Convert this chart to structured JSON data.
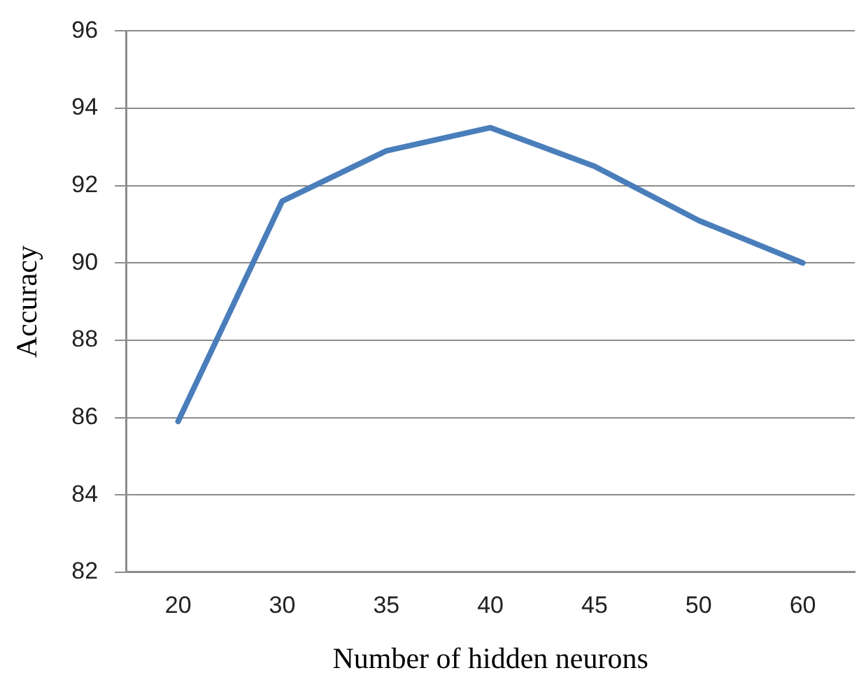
{
  "chart_data": {
    "type": "line",
    "xlabel": "Number of hidden neurons",
    "ylabel": "Accuracy",
    "categories": [
      "20",
      "30",
      "35",
      "40",
      "45",
      "50",
      "60"
    ],
    "series": [
      {
        "color": "#4a7ebb",
        "values": [
          85.9,
          91.6,
          92.9,
          93.5,
          92.5,
          91.1,
          90.0
        ]
      }
    ],
    "ylim": [
      82,
      96
    ],
    "yticks": [
      82,
      84,
      86,
      88,
      90,
      92,
      94,
      96
    ],
    "grid": "y",
    "legend": false,
    "marker": "none",
    "line_style": "solid"
  }
}
